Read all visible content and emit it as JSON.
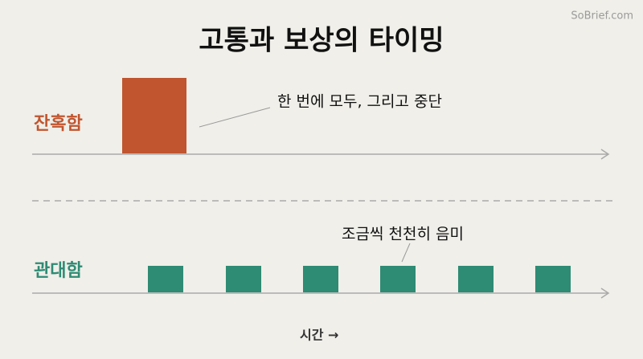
{
  "watermark": "SoBrief.com",
  "title": "고통과 보상의 타이밍",
  "rows": [
    {
      "label": "잔혹함",
      "note": "한 번에 모두, 그리고 중단"
    },
    {
      "label": "관대함",
      "note": "조금씩 천천히 음미"
    }
  ],
  "axis_label": "시간 →"
}
